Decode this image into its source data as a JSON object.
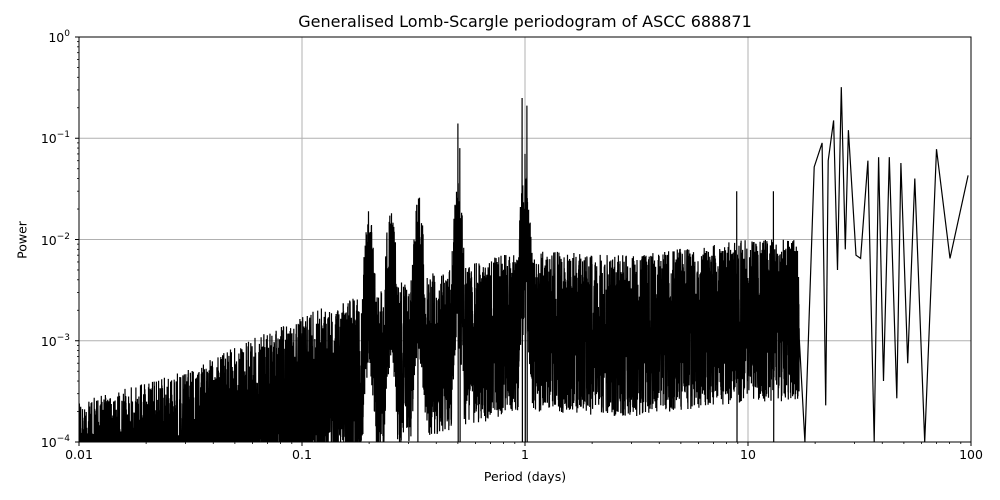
{
  "chart_data": {
    "type": "line",
    "title": "Generalised Lomb-Scargle periodogram of ASCC 688871",
    "xlabel": "Period (days)",
    "ylabel": "Power",
    "xscale": "log",
    "yscale": "log",
    "xlim": [
      0.01,
      100
    ],
    "ylim": [
      0.0001,
      1
    ],
    "grid": true,
    "legend": null,
    "line_color": "#000000",
    "grid_color": "#b0b0b0",
    "xticks": [
      {
        "value": 0.01,
        "label": "0.01"
      },
      {
        "value": 0.1,
        "label": "0.1"
      },
      {
        "value": 1,
        "label": "1"
      },
      {
        "value": 10,
        "label": "10"
      },
      {
        "value": 100,
        "label": "100"
      }
    ],
    "yticks": [
      {
        "value": 0.0001,
        "base": "10",
        "exp": "−4"
      },
      {
        "value": 0.001,
        "base": "10",
        "exp": "−3"
      },
      {
        "value": 0.01,
        "base": "10",
        "exp": "−2"
      },
      {
        "value": 0.1,
        "base": "10",
        "exp": "−1"
      },
      {
        "value": 1,
        "base": "10",
        "exp": "0"
      }
    ],
    "noise_envelope": {
      "period": [
        0.01,
        0.03,
        0.1,
        0.3,
        1,
        3,
        10
      ],
      "power_top": [
        0.00025,
        0.0005,
        0.0018,
        0.004,
        0.008,
        0.007,
        0.01
      ]
    },
    "notable_peaks": [
      {
        "period": 0.33,
        "power": 0.015
      },
      {
        "period": 0.5,
        "power": 0.14
      },
      {
        "period": 0.51,
        "power": 0.08
      },
      {
        "period": 0.97,
        "power": 0.25
      },
      {
        "period": 1.02,
        "power": 0.21
      },
      {
        "period": 1.0,
        "power": 0.07
      },
      {
        "period": 8.9,
        "power": 0.03
      },
      {
        "period": 13.0,
        "power": 0.03
      },
      {
        "period": 19.8,
        "power": 0.052
      },
      {
        "period": 21.5,
        "power": 0.09
      },
      {
        "period": 22.9,
        "power": 0.06
      },
      {
        "period": 24.2,
        "power": 0.15
      },
      {
        "period": 26.2,
        "power": 0.32
      },
      {
        "period": 28.2,
        "power": 0.12
      },
      {
        "period": 34.5,
        "power": 0.06
      },
      {
        "period": 38.5,
        "power": 0.065
      },
      {
        "period": 43.0,
        "power": 0.065
      },
      {
        "period": 48.5,
        "power": 0.057
      },
      {
        "period": 56.0,
        "power": 0.04
      },
      {
        "period": 70.0,
        "power": 0.078
      },
      {
        "period": 97.0,
        "power": 0.043
      }
    ],
    "notable_minima": [
      {
        "period": 30.5,
        "power": 0.007
      },
      {
        "period": 32.0,
        "power": 0.0065
      },
      {
        "period": 40.5,
        "power": 0.0004
      },
      {
        "period": 46.5,
        "power": 0.00027
      },
      {
        "period": 80.5,
        "power": 0.0065
      }
    ]
  }
}
